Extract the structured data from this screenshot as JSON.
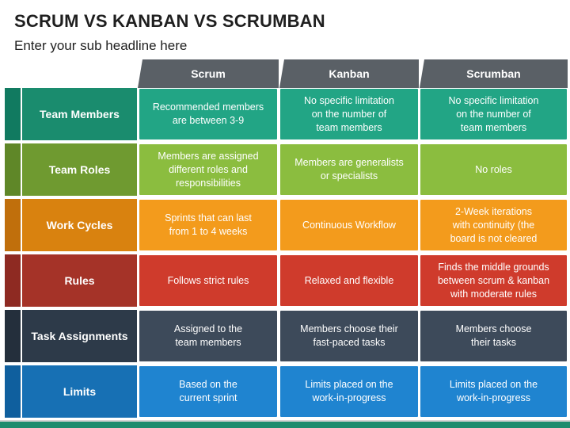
{
  "title": "SCRUM VS KANBAN VS SCRUMBAN",
  "subtitle": "Enter your sub headline here",
  "columns": [
    "Scrum",
    "Kanban",
    "Scrumban"
  ],
  "rows": [
    {
      "label": "Team Members",
      "color_tab": "#117a60",
      "color_label": "#1a8c6e",
      "color_cell": "#22a585",
      "cells": [
        "Recommended members\nare between 3-9",
        "No specific limitation\non the number of\nteam members",
        "No specific limitation\non the number of\nteam members"
      ]
    },
    {
      "label": "Team Roles",
      "color_tab": "#5f8728",
      "color_label": "#6f9a30",
      "color_cell": "#8bbd3f",
      "cells": [
        "Members are assigned\ndifferent roles and\nresponsibilities",
        "Members are generalists\nor specialists",
        "No roles"
      ]
    },
    {
      "label": "Work Cycles",
      "color_tab": "#c06f0c",
      "color_label": "#d9820f",
      "color_cell": "#f39b1c",
      "cells": [
        "Sprints that can last\nfrom 1 to 4 weeks",
        "Continuous Workflow",
        "2-Week iterations\nwith continuity (the\nboard is not cleared"
      ]
    },
    {
      "label": "Rules",
      "color_tab": "#8e2a22",
      "color_label": "#a53328",
      "color_cell": "#cf3b2c",
      "cells": [
        "Follows strict rules",
        "Relaxed and flexible",
        "Finds the middle grounds\nbetween scrum & kanban\nwith moderate rules"
      ]
    },
    {
      "label": "Task Assignments",
      "color_tab": "#242f3c",
      "color_label": "#2d3a49",
      "color_cell": "#3d4a5a",
      "cells": [
        "Assigned to the\nteam members",
        "Members choose their\nfast-paced tasks",
        "Members choose\ntheir tasks"
      ]
    },
    {
      "label": "Limits",
      "color_tab": "#0f5f9e",
      "color_label": "#1770b4",
      "color_cell": "#1f84d0",
      "cells": [
        "Based on the\ncurrent sprint",
        "Limits placed on the\nwork-in-progress",
        "Limits placed on the\nwork-in-progress"
      ]
    }
  ]
}
